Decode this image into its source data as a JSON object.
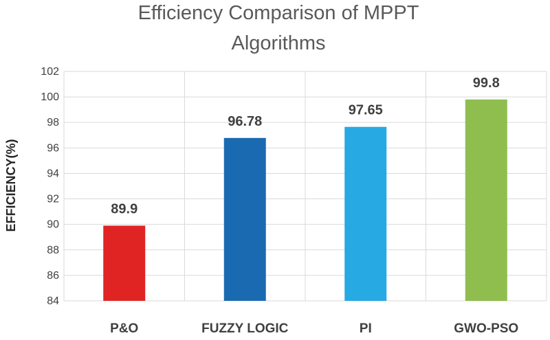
{
  "chart_data": {
    "type": "bar",
    "title_lines": [
      "Efficiency Comparison of MPPT",
      "Algorithms"
    ],
    "xlabel": "",
    "ylabel": "EFFICIENCY(%)",
    "categories": [
      "P&O",
      "FUZZY LOGIC",
      "PI",
      "GWO-PSO"
    ],
    "values": [
      89.9,
      96.78,
      97.65,
      99.8
    ],
    "data_labels": [
      "89.9",
      "96.78",
      "97.65",
      "99.8"
    ],
    "colors": [
      "#e02424",
      "#1a6ab2",
      "#27a9e3",
      "#8fbe4f"
    ],
    "ylim": [
      84,
      102
    ],
    "yticks": [
      "84",
      "86",
      "88",
      "90",
      "92",
      "94",
      "96",
      "98",
      "100",
      "102"
    ],
    "grid": true,
    "legend": "none"
  }
}
